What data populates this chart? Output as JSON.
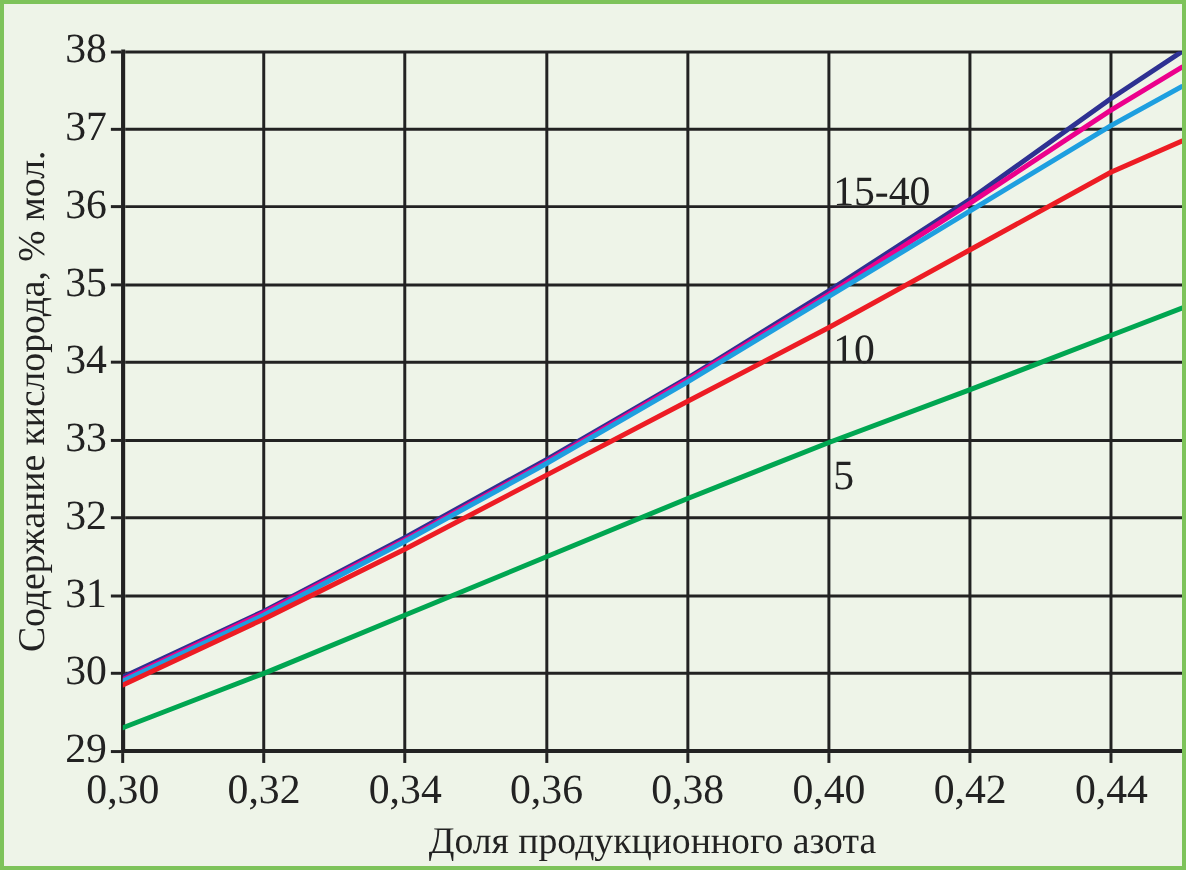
{
  "chart_data": {
    "type": "line",
    "xlabel": "Доля продукционного азота",
    "ylabel": "Содержание кислорода, % мол.",
    "x": [
      0.3,
      0.32,
      0.34,
      0.36,
      0.38,
      0.4,
      0.42,
      0.44,
      0.45
    ],
    "series": [
      {
        "color": "#00a651",
        "values": [
          29.3,
          30.0,
          30.75,
          31.5,
          32.25,
          32.97,
          33.65,
          34.35,
          34.7
        ]
      },
      {
        "color": "#ed1c24",
        "values": [
          29.85,
          30.7,
          31.6,
          32.55,
          33.5,
          34.45,
          35.45,
          36.45,
          36.85
        ]
      },
      {
        "color": "#1e9fe0",
        "values": [
          29.9,
          30.75,
          31.7,
          32.7,
          33.75,
          34.85,
          35.95,
          37.05,
          37.55
        ]
      },
      {
        "color": "#ec008c",
        "values": [
          29.92,
          30.78,
          31.72,
          32.72,
          33.78,
          34.88,
          36.05,
          37.25,
          37.8
        ]
      },
      {
        "color": "#2e3192",
        "values": [
          29.95,
          30.8,
          31.75,
          32.75,
          33.8,
          34.92,
          36.1,
          37.4,
          38.0
        ]
      }
    ],
    "xlim": [
      0.3,
      0.45
    ],
    "xticks": [
      {
        "value": 0.3,
        "label": "0,30"
      },
      {
        "value": 0.32,
        "label": "0,32"
      },
      {
        "value": 0.34,
        "label": "0,34"
      },
      {
        "value": 0.36,
        "label": "0,36"
      },
      {
        "value": 0.38,
        "label": "0,38"
      },
      {
        "value": 0.4,
        "label": "0,40"
      },
      {
        "value": 0.42,
        "label": "0,42"
      },
      {
        "value": 0.44,
        "label": "0,44"
      }
    ],
    "ylim": [
      29,
      38
    ],
    "yticks": [
      29,
      30,
      31,
      32,
      33,
      34,
      35,
      36,
      37,
      38
    ],
    "annotations": [
      "15-40",
      "10",
      "5"
    ],
    "grid": true,
    "legend": false,
    "marker": "none",
    "line_style": "solid"
  }
}
